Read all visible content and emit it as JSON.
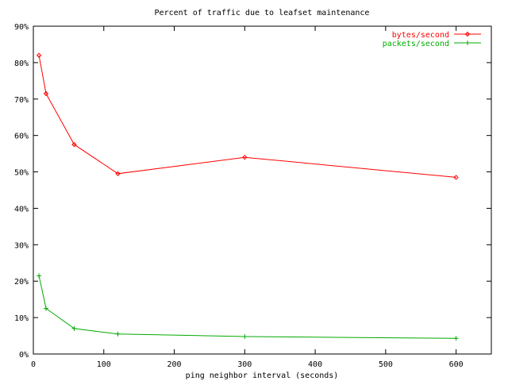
{
  "chart_data": {
    "type": "line",
    "title": "Percent of traffic due to leafset maintenance",
    "xlabel": "ping neighbor interval (seconds)",
    "ylabel": "",
    "xlim": [
      0,
      650
    ],
    "ylim": [
      0,
      90
    ],
    "xticks": [
      0,
      100,
      200,
      300,
      400,
      500,
      600
    ],
    "xtick_labels": [
      "0",
      "100",
      "200",
      "300",
      "400",
      "500",
      "600"
    ],
    "yticks": [
      0,
      10,
      20,
      30,
      40,
      50,
      60,
      70,
      80,
      90
    ],
    "ytick_labels": [
      "0%",
      "10%",
      "20%",
      "30%",
      "40%",
      "50%",
      "60%",
      "70%",
      "80%",
      "90%"
    ],
    "grid": false,
    "legend_position": "top-right",
    "series": [
      {
        "name": "bytes/second",
        "color": "#ff0000",
        "marker": "diamond",
        "x": [
          8,
          18,
          58,
          120,
          300,
          600
        ],
        "y": [
          82,
          71.5,
          57.5,
          49.5,
          54,
          48.5
        ]
      },
      {
        "name": "packets/second",
        "color": "#00aa00",
        "marker": "plus",
        "x": [
          8,
          18,
          58,
          120,
          300,
          600
        ],
        "y": [
          21.5,
          12.5,
          7,
          5.5,
          4.8,
          4.3
        ]
      }
    ]
  }
}
